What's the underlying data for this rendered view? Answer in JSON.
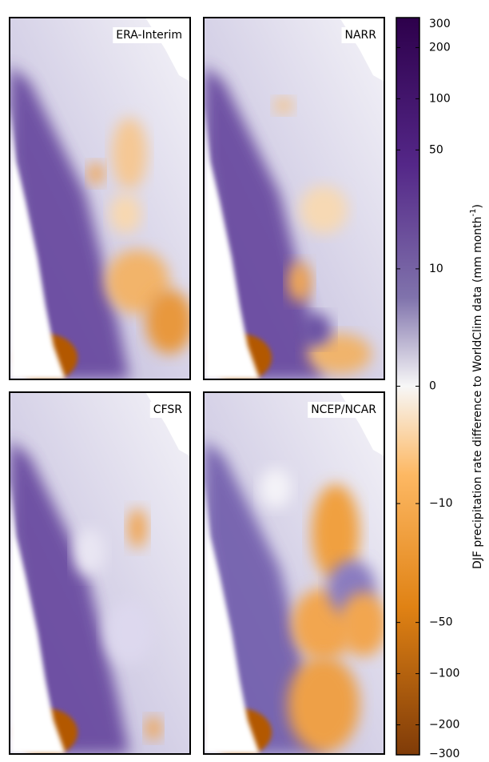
{
  "panels": [
    {
      "label": "ERA-Interim"
    },
    {
      "label": "NARR"
    },
    {
      "label": "CFSR"
    },
    {
      "label": "NCEP/NCAR"
    }
  ],
  "colorbar": {
    "label": [
      "DJF precipitation rate difference to WorldClim data (mm month",
      "-1",
      ")"
    ],
    "ylim": [
      -300,
      300
    ],
    "scale": "symlog",
    "linthresh": 10,
    "linscale": 0.69,
    "ticks": [
      300,
      200,
      100,
      50,
      10,
      0,
      {
        "value": -10,
        "label": "−10"
      },
      {
        "value": -50,
        "label": "−50"
      },
      {
        "value": -100,
        "label": "−100"
      },
      {
        "value": -200,
        "label": "−200"
      },
      {
        "value": -300,
        "label": "−300"
      }
    ]
  }
}
